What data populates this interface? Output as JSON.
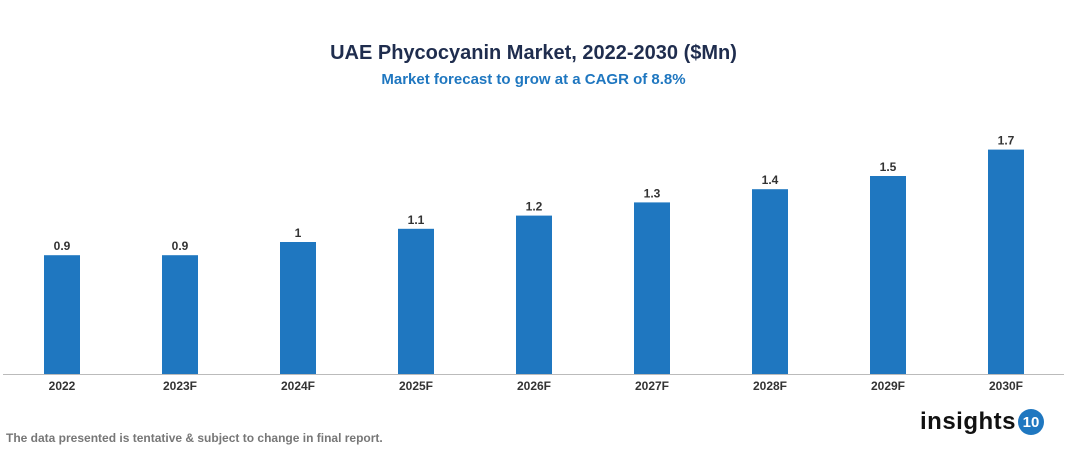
{
  "chart_data": {
    "type": "bar",
    "title": "UAE Phycocyanin Market, 2022-2030 ($Mn)",
    "subtitle": "Market forecast to grow at a CAGR of 8.8%",
    "categories": [
      "2022",
      "2023F",
      "2024F",
      "2025F",
      "2026F",
      "2027F",
      "2028F",
      "2029F",
      "2030F"
    ],
    "values": [
      0.9,
      0.9,
      1,
      1.1,
      1.2,
      1.3,
      1.4,
      1.5,
      1.7
    ],
    "data_labels": [
      "0.9",
      "0.9",
      "1",
      "1.1",
      "1.2",
      "1.3",
      "1.4",
      "1.5",
      "1.7"
    ],
    "xlabel": "",
    "ylabel": "",
    "ylim": [
      0,
      1.9
    ],
    "grid": false,
    "bar_color": "#1f77c0"
  },
  "footer": {
    "note": "The data presented is tentative & subject to change in final report.",
    "logo_text": "insights",
    "logo_badge": "10"
  }
}
